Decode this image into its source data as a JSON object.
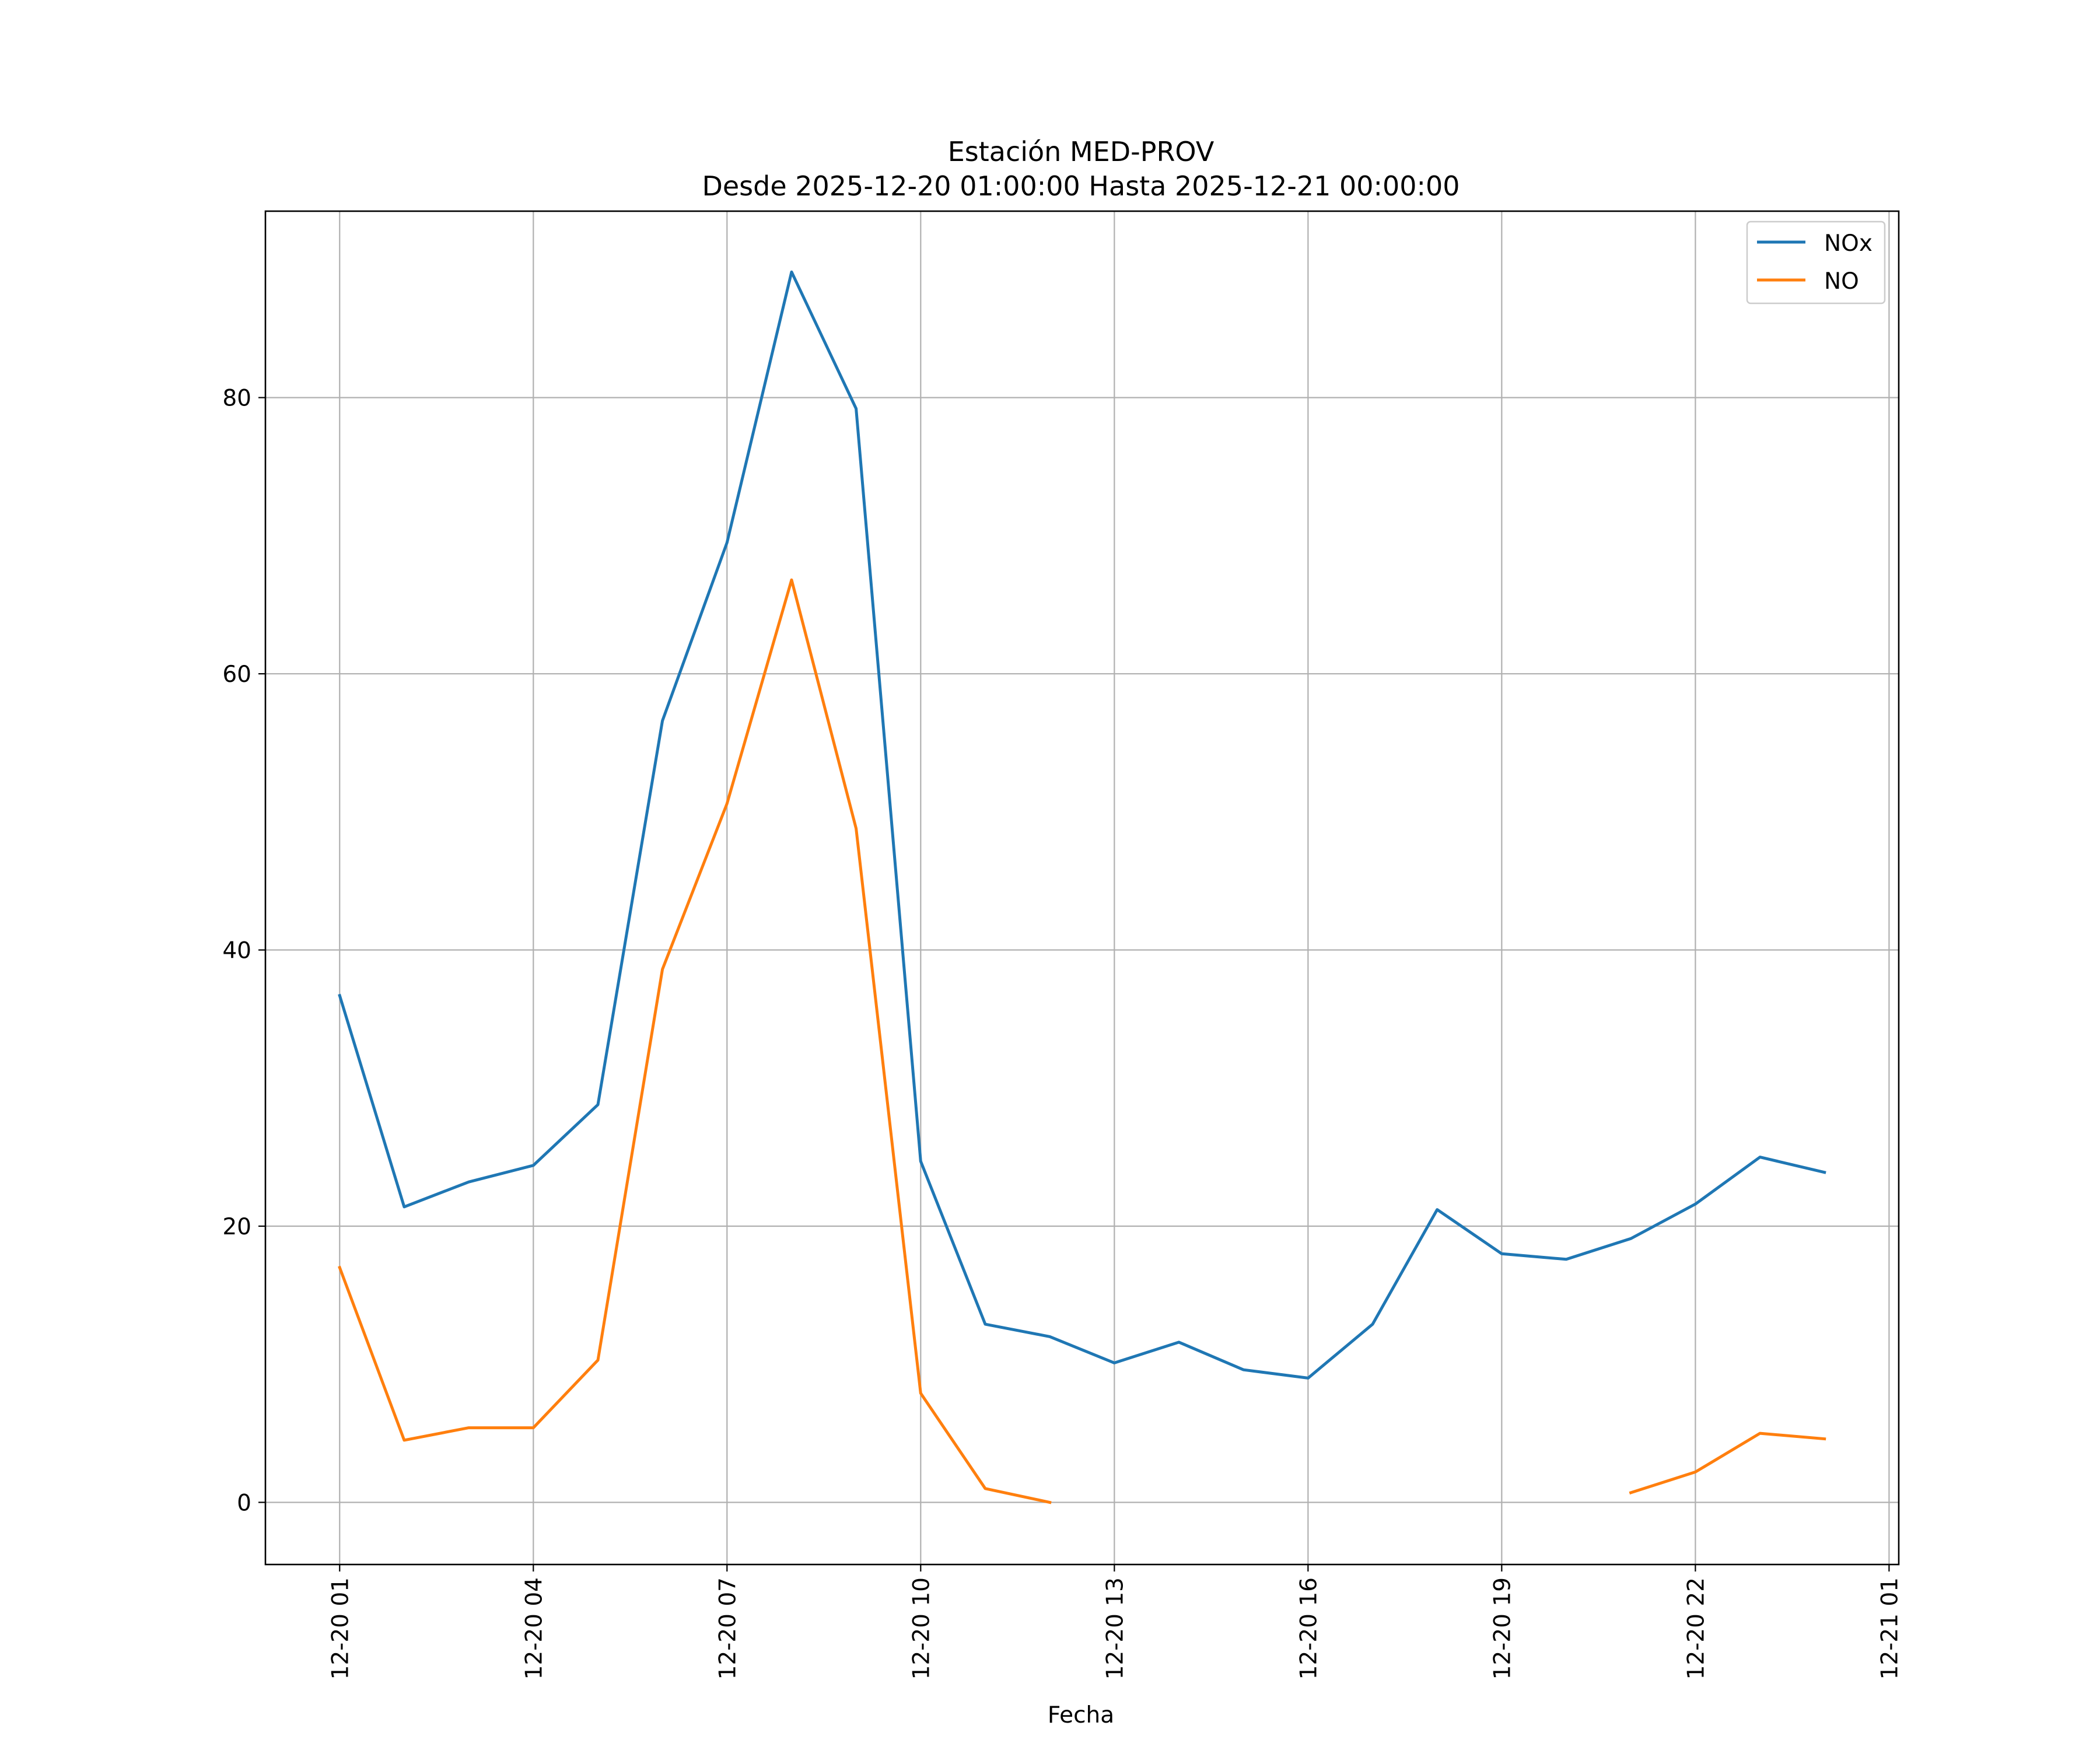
{
  "chart_data": {
    "type": "line",
    "title": "Estación MED-PROV",
    "subtitle": "Desde 2025-12-20 01:00:00 Hasta 2025-12-21 00:00:00",
    "xlabel": "Fecha",
    "ylabel": "",
    "x_tick_labels": [
      "12-20 01",
      "12-20 04",
      "12-20 07",
      "12-20 10",
      "12-20 13",
      "12-20 16",
      "12-20 19",
      "12-20 22",
      "12-21 01"
    ],
    "x_tick_hours": [
      1,
      4,
      7,
      10,
      13,
      16,
      19,
      22,
      25
    ],
    "y_ticks": [
      0,
      20,
      40,
      60,
      80
    ],
    "y_tick_labels": [
      "0",
      "20",
      "40",
      "60",
      "80"
    ],
    "xlim_hours": [
      -0.15,
      25.15
    ],
    "ylim": [
      -4.5,
      93.5
    ],
    "grid": true,
    "legend_position": "top-right",
    "x_hours": [
      1,
      2,
      3,
      4,
      5,
      6,
      7,
      8,
      9,
      10,
      11,
      12,
      13,
      14,
      15,
      16,
      17,
      18,
      19,
      20,
      21,
      22,
      23,
      24
    ],
    "series": [
      {
        "name": "NOx",
        "color": "#1f77b4",
        "values": [
          36.7,
          21.4,
          23.2,
          24.4,
          28.8,
          56.6,
          69.5,
          89.1,
          79.2,
          24.7,
          12.9,
          12.0,
          10.1,
          11.6,
          9.6,
          9.0,
          12.9,
          21.2,
          18.0,
          17.6,
          19.1,
          21.6,
          25.0,
          23.9
        ]
      },
      {
        "name": "NO",
        "color": "#ff7f0e",
        "values": [
          17.0,
          4.5,
          5.4,
          5.4,
          10.3,
          38.6,
          50.6,
          66.8,
          48.8,
          7.9,
          1.0,
          0.0,
          null,
          null,
          null,
          null,
          null,
          null,
          null,
          null,
          0.7,
          2.2,
          5.0,
          4.6
        ]
      }
    ]
  }
}
